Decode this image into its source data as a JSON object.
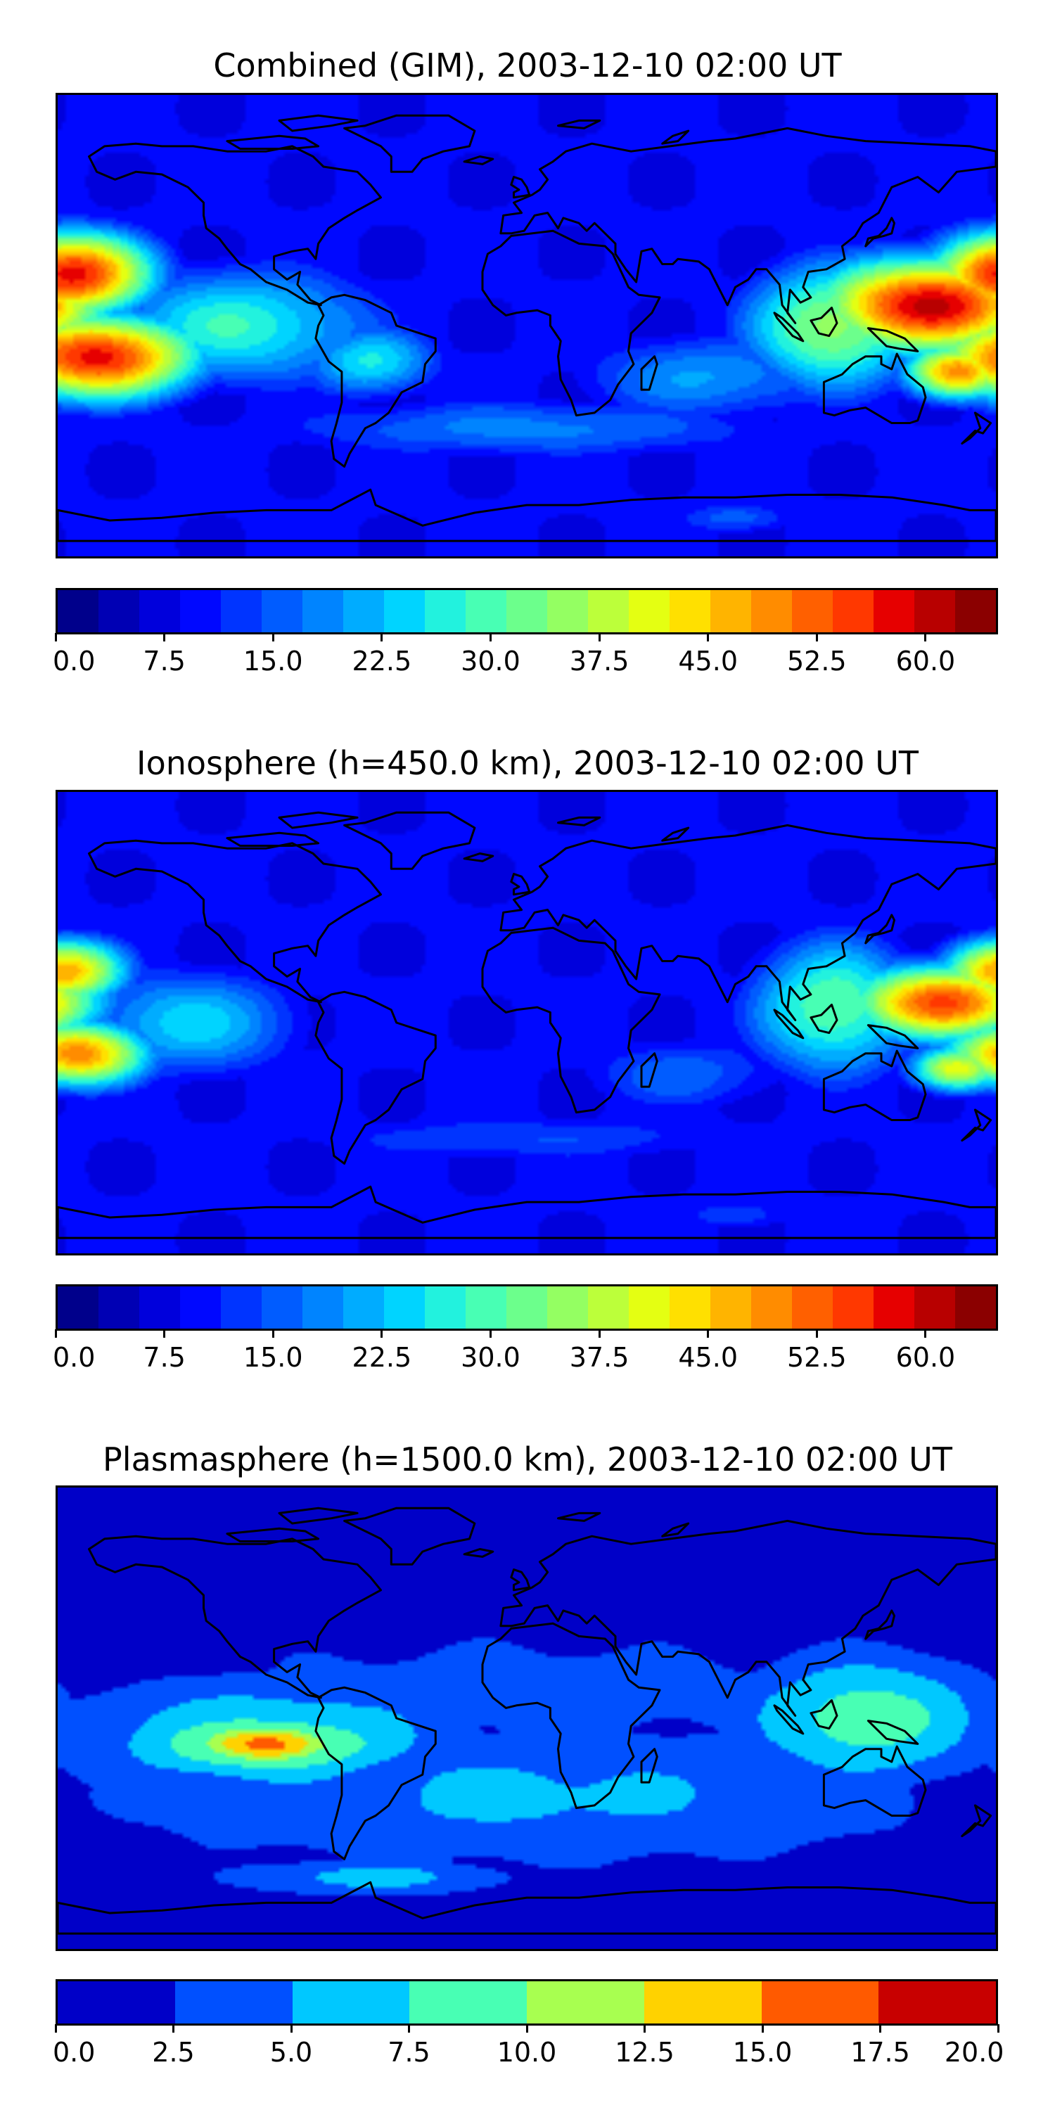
{
  "panels": [
    {
      "title": "Combined (GIM), 2003-12-10 02:00 UT",
      "scale_max": 65,
      "colorbar": {
        "min": 0.0,
        "max": 65.0,
        "tick_labels": [
          "0.0",
          "7.5",
          "15.0",
          "22.5",
          "30.0",
          "37.5",
          "45.0",
          "52.5",
          "60.0"
        ],
        "tick_values": [
          0,
          7.5,
          15,
          22.5,
          30,
          37.5,
          45,
          52.5,
          60
        ],
        "colors": [
          "#00008b",
          "#0000b4",
          "#0000dc",
          "#0008ff",
          "#0034ff",
          "#005cff",
          "#0084ff",
          "#00acff",
          "#00d4ff",
          "#22f2de",
          "#48ffb4",
          "#6cff8c",
          "#94ff62",
          "#bcff3a",
          "#e4ff12",
          "#ffe000",
          "#ffb400",
          "#ff8c00",
          "#ff6000",
          "#ff3800",
          "#e60000",
          "#b80000",
          "#8b0000"
        ]
      },
      "blobs": [
        {
          "lon": -175,
          "lat": 20,
          "rx": 34,
          "ry": 18,
          "v": 58
        },
        {
          "lon": -165,
          "lat": -12,
          "rx": 42,
          "ry": 18,
          "v": 58
        },
        {
          "lon": 155,
          "lat": 8,
          "rx": 48,
          "ry": 20,
          "v": 60
        },
        {
          "lon": 165,
          "lat": -18,
          "rx": 22,
          "ry": 12,
          "v": 50
        },
        {
          "lon": 118,
          "lat": 0,
          "rx": 38,
          "ry": 28,
          "v": 36
        },
        {
          "lon": -110,
          "lat": 0,
          "rx": 60,
          "ry": 26,
          "v": 28
        },
        {
          "lon": -60,
          "lat": -14,
          "rx": 30,
          "ry": 16,
          "v": 26
        },
        {
          "lon": 70,
          "lat": -20,
          "rx": 60,
          "ry": 20,
          "v": 20
        },
        {
          "lon": 0,
          "lat": -40,
          "rx": 120,
          "ry": 14,
          "v": 18
        },
        {
          "lon": 0,
          "lat": 30,
          "rx": 80,
          "ry": 14,
          "v": 8
        },
        {
          "lon": 80,
          "lat": -75,
          "rx": 30,
          "ry": 8,
          "v": 16
        }
      ]
    },
    {
      "title": "Ionosphere  (h=450.0 km), 2003-12-10 02:00 UT",
      "scale_max": 65,
      "colorbar": {
        "min": 0.0,
        "max": 65.0,
        "tick_labels": [
          "0.0",
          "7.5",
          "15.0",
          "22.5",
          "30.0",
          "37.5",
          "45.0",
          "52.5",
          "60.0"
        ],
        "tick_values": [
          0,
          7.5,
          15,
          22.5,
          30,
          37.5,
          45,
          52.5,
          60
        ],
        "colors": [
          "#00008b",
          "#0000b4",
          "#0000dc",
          "#0008ff",
          "#0034ff",
          "#005cff",
          "#0084ff",
          "#00acff",
          "#00d4ff",
          "#22f2de",
          "#48ffb4",
          "#6cff8c",
          "#94ff62",
          "#bcff3a",
          "#e4ff12",
          "#ffe000",
          "#ffb400",
          "#ff8c00",
          "#ff6000",
          "#ff3800",
          "#e60000",
          "#b80000",
          "#8b0000"
        ]
      },
      "blobs": [
        {
          "lon": -178,
          "lat": 20,
          "rx": 26,
          "ry": 14,
          "v": 48
        },
        {
          "lon": -172,
          "lat": -12,
          "rx": 30,
          "ry": 14,
          "v": 50
        },
        {
          "lon": 160,
          "lat": 8,
          "rx": 40,
          "ry": 16,
          "v": 54
        },
        {
          "lon": 118,
          "lat": 6,
          "rx": 36,
          "ry": 30,
          "v": 32
        },
        {
          "lon": 165,
          "lat": -18,
          "rx": 20,
          "ry": 10,
          "v": 42
        },
        {
          "lon": -130,
          "lat": 0,
          "rx": 50,
          "ry": 24,
          "v": 24
        },
        {
          "lon": 60,
          "lat": -20,
          "rx": 50,
          "ry": 18,
          "v": 16
        },
        {
          "lon": 0,
          "lat": -45,
          "rx": 120,
          "ry": 12,
          "v": 14
        },
        {
          "lon": 80,
          "lat": -75,
          "rx": 30,
          "ry": 8,
          "v": 14
        }
      ]
    },
    {
      "title": "Plasmasphere (h=1500.0 km), 2003-12-10 02:00 UT",
      "scale_max": 20,
      "colorbar": {
        "min": 0.0,
        "max": 20.0,
        "tick_labels": [
          "0.0",
          "2.5",
          "5.0",
          "7.5",
          "10.0",
          "12.5",
          "15.0",
          "17.5",
          "20.0"
        ],
        "tick_values": [
          0,
          2.5,
          5,
          7.5,
          10,
          12.5,
          15,
          17.5,
          20
        ],
        "colors": [
          "#0000c8",
          "#0050ff",
          "#00c8ff",
          "#48ffb4",
          "#a8ff50",
          "#ffd200",
          "#ff5a00",
          "#c80000"
        ]
      },
      "blobs": [
        {
          "lon": -100,
          "lat": -8,
          "rx": 85,
          "ry": 25,
          "v": 7.6
        },
        {
          "lon": -100,
          "lat": -10,
          "rx": 60,
          "ry": 15,
          "v": 11
        },
        {
          "lon": -100,
          "lat": -10,
          "rx": 32,
          "ry": 9,
          "v": 16
        },
        {
          "lon": 130,
          "lat": 0,
          "rx": 50,
          "ry": 26,
          "v": 9
        },
        {
          "lon": 0,
          "lat": -30,
          "rx": 180,
          "ry": 30,
          "v": 5.5
        },
        {
          "lon": 0,
          "lat": 10,
          "rx": 180,
          "ry": 30,
          "v": 3.5
        },
        {
          "lon": -60,
          "lat": -62,
          "rx": 60,
          "ry": 8,
          "v": 6
        }
      ]
    }
  ]
}
